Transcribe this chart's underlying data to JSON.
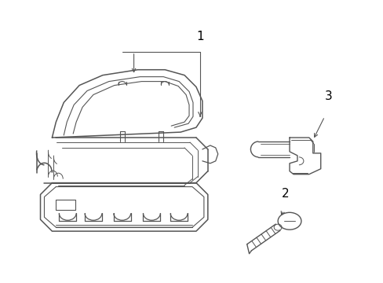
{
  "background_color": "#ffffff",
  "line_color": "#555555",
  "text_color": "#000000",
  "label_fontsize": 11,
  "figsize": [
    4.89,
    3.6
  ],
  "dpi": 100
}
